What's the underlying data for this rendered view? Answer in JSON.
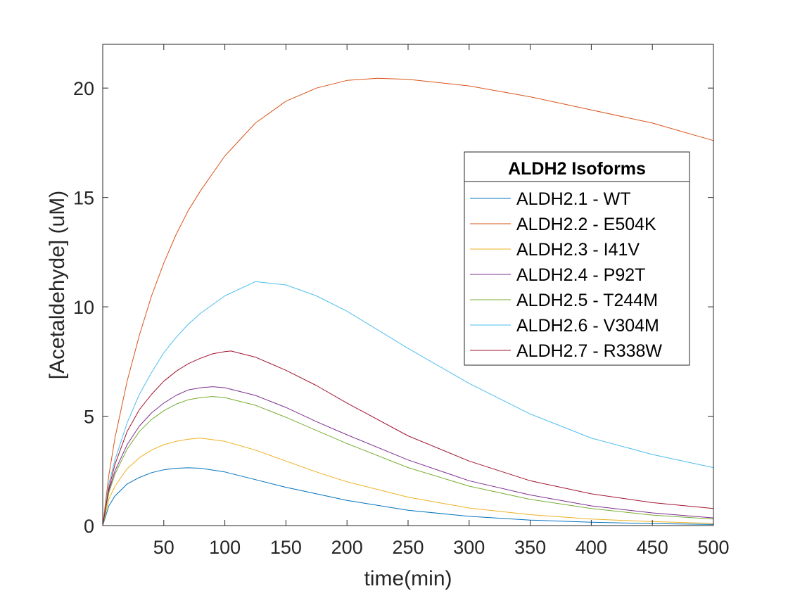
{
  "chart_data": {
    "type": "line",
    "title": "",
    "xlabel": "time(min)",
    "ylabel": "[Acetaldehyde] (uM)",
    "xlim": [
      0,
      500
    ],
    "ylim": [
      0,
      22
    ],
    "xticks": [
      50,
      100,
      150,
      200,
      250,
      300,
      350,
      400,
      450,
      500
    ],
    "yticks": [
      0,
      5,
      10,
      15,
      20
    ],
    "grid": false,
    "legend": {
      "title": "ALDH2 Isoforms",
      "placement": "right"
    },
    "series": [
      {
        "name": "ALDH2.1 - WT",
        "color": "#0072BD",
        "x": [
          0,
          5,
          10,
          20,
          30,
          40,
          50,
          60,
          70,
          80,
          100,
          125,
          150,
          175,
          200,
          250,
          300,
          350,
          400,
          450,
          500
        ],
        "y": [
          0,
          0.9,
          1.35,
          1.9,
          2.2,
          2.42,
          2.55,
          2.62,
          2.64,
          2.62,
          2.45,
          2.1,
          1.75,
          1.45,
          1.15,
          0.7,
          0.42,
          0.25,
          0.15,
          0.09,
          0.05
        ]
      },
      {
        "name": "ALDH2.2 - E504K",
        "color": "#D95319",
        "x": [
          0,
          5,
          10,
          20,
          30,
          40,
          50,
          60,
          70,
          80,
          100,
          125,
          150,
          175,
          200,
          225,
          250,
          300,
          350,
          400,
          450,
          500
        ],
        "y": [
          0,
          2.3,
          4.0,
          6.6,
          8.7,
          10.5,
          12.0,
          13.3,
          14.4,
          15.3,
          16.9,
          18.4,
          19.4,
          20.0,
          20.35,
          20.45,
          20.4,
          20.1,
          19.6,
          19.0,
          18.4,
          17.6
        ]
      },
      {
        "name": "ALDH2.3 - I41V",
        "color": "#EDB120",
        "x": [
          0,
          5,
          10,
          20,
          30,
          40,
          50,
          60,
          70,
          80,
          100,
          125,
          150,
          175,
          200,
          250,
          300,
          350,
          400,
          450,
          500
        ],
        "y": [
          0,
          1.2,
          1.8,
          2.6,
          3.1,
          3.45,
          3.7,
          3.85,
          3.95,
          4.0,
          3.85,
          3.45,
          2.95,
          2.45,
          2.0,
          1.3,
          0.8,
          0.5,
          0.3,
          0.18,
          0.1
        ]
      },
      {
        "name": "ALDH2.4 - P92T",
        "color": "#7E2F8E",
        "x": [
          0,
          5,
          10,
          20,
          30,
          40,
          50,
          60,
          70,
          80,
          90,
          100,
          125,
          150,
          175,
          200,
          250,
          300,
          350,
          400,
          450,
          500
        ],
        "y": [
          0,
          1.6,
          2.5,
          3.7,
          4.55,
          5.15,
          5.6,
          5.95,
          6.2,
          6.3,
          6.35,
          6.3,
          5.95,
          5.4,
          4.75,
          4.15,
          3.0,
          2.05,
          1.4,
          0.9,
          0.58,
          0.35
        ]
      },
      {
        "name": "ALDH2.5 - T244M",
        "color": "#77AC30",
        "x": [
          0,
          5,
          10,
          20,
          30,
          40,
          50,
          60,
          70,
          80,
          90,
          100,
          125,
          150,
          175,
          200,
          250,
          300,
          350,
          400,
          450,
          500
        ],
        "y": [
          0,
          1.5,
          2.35,
          3.5,
          4.3,
          4.85,
          5.25,
          5.55,
          5.75,
          5.85,
          5.9,
          5.85,
          5.5,
          4.95,
          4.35,
          3.75,
          2.65,
          1.8,
          1.2,
          0.78,
          0.48,
          0.3
        ]
      },
      {
        "name": "ALDH2.6 - V304M",
        "color": "#4DBEEE",
        "x": [
          0,
          5,
          10,
          20,
          30,
          40,
          50,
          60,
          70,
          80,
          100,
          125,
          150,
          175,
          200,
          250,
          300,
          350,
          400,
          450,
          500
        ],
        "y": [
          0,
          1.9,
          3.0,
          4.7,
          6.0,
          7.0,
          7.9,
          8.6,
          9.2,
          9.7,
          10.5,
          11.15,
          11.0,
          10.5,
          9.8,
          8.1,
          6.5,
          5.1,
          4.0,
          3.25,
          2.65
        ]
      },
      {
        "name": "ALDH2.7 - R338W",
        "color": "#A2142F",
        "x": [
          0,
          5,
          10,
          20,
          30,
          40,
          50,
          60,
          70,
          80,
          90,
          100,
          105,
          125,
          150,
          175,
          200,
          250,
          300,
          350,
          400,
          450,
          500
        ],
        "y": [
          0,
          1.7,
          2.8,
          4.3,
          5.3,
          6.0,
          6.6,
          7.05,
          7.4,
          7.65,
          7.85,
          7.95,
          7.98,
          7.7,
          7.1,
          6.4,
          5.6,
          4.1,
          2.95,
          2.05,
          1.45,
          1.05,
          0.78
        ]
      }
    ]
  }
}
